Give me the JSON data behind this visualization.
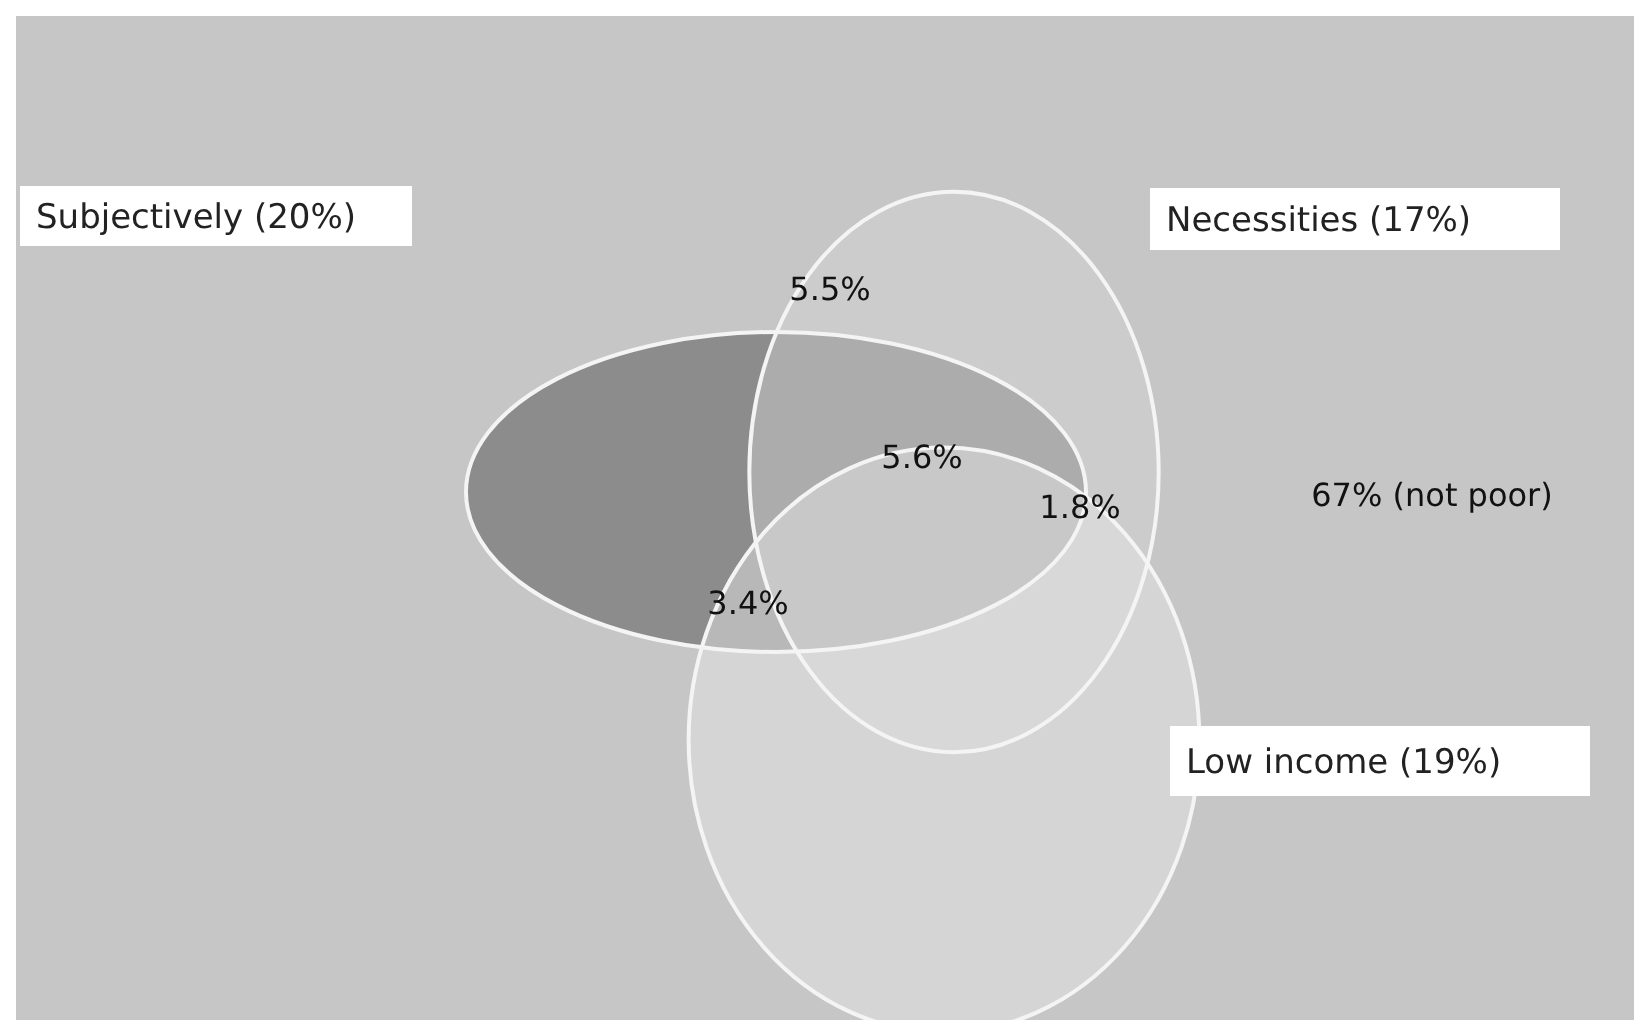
{
  "chart_data": {
    "type": "other",
    "categories": [
      "Subjectively",
      "Necessities",
      "Low income"
    ],
    "values": [
      20,
      17,
      19
    ],
    "value_labels": [
      "(20%)",
      "(17%)",
      "(19%)"
    ],
    "annotations": [
      "5.5%",
      "5.6%",
      "1.8%",
      "3.4%",
      "67% (not poor)"
    ]
  }
}
